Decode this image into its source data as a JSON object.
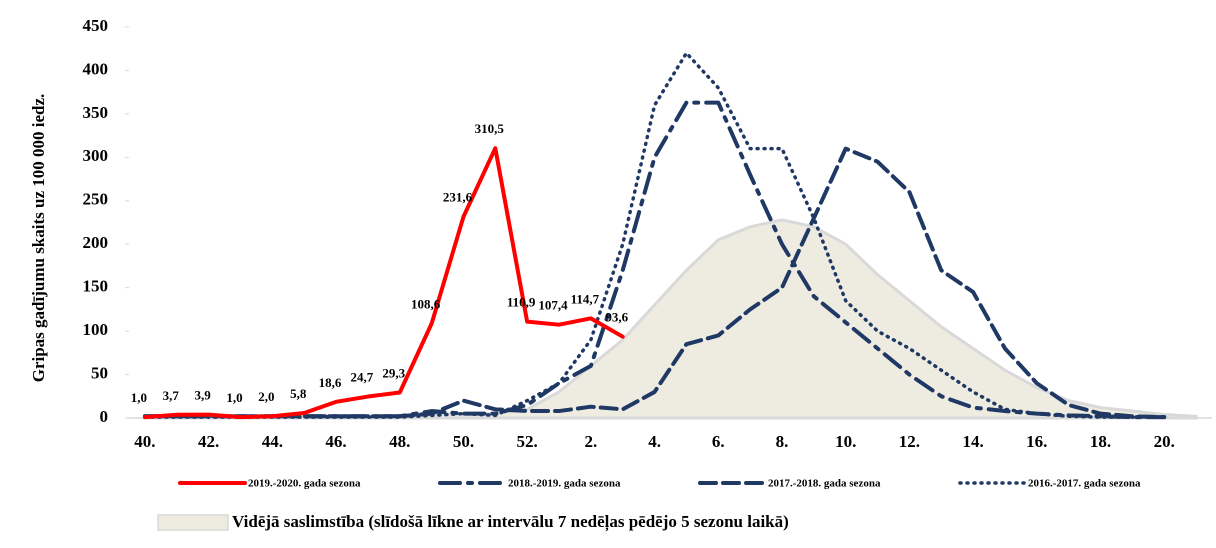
{
  "chart_data": {
    "type": "line",
    "ylabel": "Gripas gadījumu skaits uz 100 000 iedz.",
    "categories": [
      "40.",
      null,
      "42.",
      null,
      "44.",
      null,
      "46.",
      null,
      "48.",
      null,
      "50.",
      null,
      "52.",
      null,
      "2.",
      null,
      "4.",
      null,
      "6.",
      null,
      "8.",
      null,
      "10.",
      null,
      "12.",
      null,
      "14.",
      null,
      "16.",
      null,
      "18.",
      null,
      "20.",
      null
    ],
    "ylim": [
      0,
      450
    ],
    "yticks": [
      0,
      50,
      100,
      150,
      200,
      250,
      300,
      350,
      400,
      450
    ],
    "area": {
      "name": "Vidējā saslimstība (slīdošā līkne ar intervālu 7 nedēļas pēdējo 5 sezonu laikā)",
      "color": "#eeece1",
      "edge": "#d9d9d9",
      "values": [
        2,
        2,
        2,
        2,
        2,
        2,
        2,
        2,
        3,
        4,
        5,
        5,
        10,
        30,
        60,
        90,
        130,
        170,
        205,
        220,
        228,
        220,
        200,
        165,
        135,
        105,
        80,
        55,
        35,
        20,
        12,
        8,
        4,
        2
      ]
    },
    "series": [
      {
        "name": "2019.-2020. gada sezona",
        "color": "#ff0000",
        "style": "solid",
        "values": [
          1.0,
          3.7,
          3.9,
          1.0,
          2.0,
          5.8,
          18.6,
          24.7,
          29.3,
          108.6,
          231.6,
          310.5,
          110.9,
          107.4,
          114.7,
          93.6,
          null,
          null,
          null,
          null,
          null,
          null,
          null,
          null,
          null,
          null,
          null,
          null,
          null,
          null,
          null,
          null,
          null,
          null
        ],
        "value_labels": [
          "1,0",
          "3,7",
          "3,9",
          "1,0",
          "2,0",
          "5,8",
          "18,6",
          "24,7",
          "29,3",
          "108,6",
          "231,6",
          "310,5",
          "110,9",
          "107,4",
          "114,7",
          "93,6",
          null,
          null,
          null,
          null,
          null,
          null,
          null,
          null,
          null,
          null,
          null,
          null,
          null,
          null,
          null,
          null,
          null,
          null
        ]
      },
      {
        "name": "2018.-2019. gada sezona",
        "color": "#1f3864",
        "style": "dashdot",
        "values": [
          2,
          2,
          2,
          2,
          2,
          2,
          2,
          2,
          2,
          8,
          5,
          5,
          15,
          40,
          60,
          170,
          300,
          363,
          363,
          280,
          200,
          140,
          110,
          80,
          50,
          25,
          12,
          8,
          5,
          3,
          2,
          1,
          1,
          null
        ]
      },
      {
        "name": "2017.-2018. gada sezona",
        "color": "#1f3864",
        "style": "dashed",
        "values": [
          2,
          2,
          2,
          2,
          2,
          2,
          2,
          2,
          2,
          5,
          20,
          10,
          8,
          8,
          13,
          10,
          30,
          85,
          95,
          125,
          150,
          230,
          310,
          295,
          260,
          170,
          145,
          80,
          40,
          15,
          5,
          2,
          1,
          null
        ]
      },
      {
        "name": "2016.-2017. gada sezona",
        "color": "#1f3864",
        "style": "dotted",
        "values": [
          1,
          1,
          1,
          1,
          1,
          1,
          1,
          1,
          1,
          3,
          5,
          3,
          20,
          40,
          90,
          200,
          360,
          420,
          380,
          310,
          310,
          230,
          135,
          100,
          80,
          55,
          30,
          10,
          5,
          2,
          1,
          1,
          1,
          null
        ]
      }
    ]
  }
}
